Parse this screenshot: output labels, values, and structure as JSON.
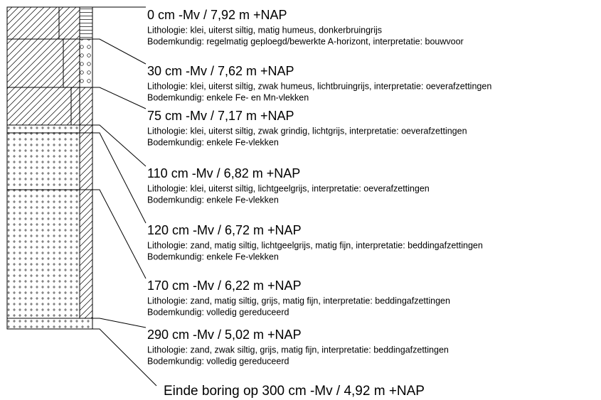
{
  "layers": [
    {
      "depth": "0 cm -Mv / 7,92 m +NAP",
      "lithologie": "Lithologie: klei, uiterst siltig, matig humeus, donkerbruingrijs",
      "bodemkundig": "Bodemkundig: regelmatig geploegd/bewerkte A-horizont, interpretatie: bouwvoor"
    },
    {
      "depth": "30 cm -Mv / 7,62 m +NAP",
      "lithologie": "Lithologie: klei, uiterst siltig, zwak humeus, lichtbruingrijs, interpretatie: oeverafzettingen",
      "bodemkundig": "Bodemkundig: enkele Fe- en Mn-vlekken"
    },
    {
      "depth": "75 cm -Mv / 7,17 m +NAP",
      "lithologie": "Lithologie: klei, uiterst siltig, zwak grindig, lichtgrijs, interpretatie: oeverafzettingen",
      "bodemkundig": "Bodemkundig: enkele Fe-vlekken"
    },
    {
      "depth": "110 cm -Mv / 6,82 m +NAP",
      "lithologie": "Lithologie: klei, uiterst siltig, lichtgeelgrijs, interpretatie: oeverafzettingen",
      "bodemkundig": "Bodemkundig: enkele Fe-vlekken"
    },
    {
      "depth": "120 cm -Mv / 6,72 m +NAP",
      "lithologie": "Lithologie: zand, matig siltig, lichtgeelgrijs, matig fijn, interpretatie: beddingafzettingen",
      "bodemkundig": "Bodemkundig: enkele Fe-vlekken"
    },
    {
      "depth": "170 cm -Mv / 6,22 m +NAP",
      "lithologie": "Lithologie: zand, matig siltig, grijs, matig fijn, interpretatie: beddingafzettingen",
      "bodemkundig": "Bodemkundig: volledig gereduceerd"
    },
    {
      "depth": "290 cm -Mv / 5,02 m +NAP",
      "lithologie": "Lithologie: zand, zwak siltig, grijs, matig fijn, interpretatie: beddingafzettingen",
      "bodemkundig": "Bodemkundig: volledig gereduceerd"
    }
  ],
  "end": "Einde boring op 300 cm -Mv / 4,92 m +NAP"
}
